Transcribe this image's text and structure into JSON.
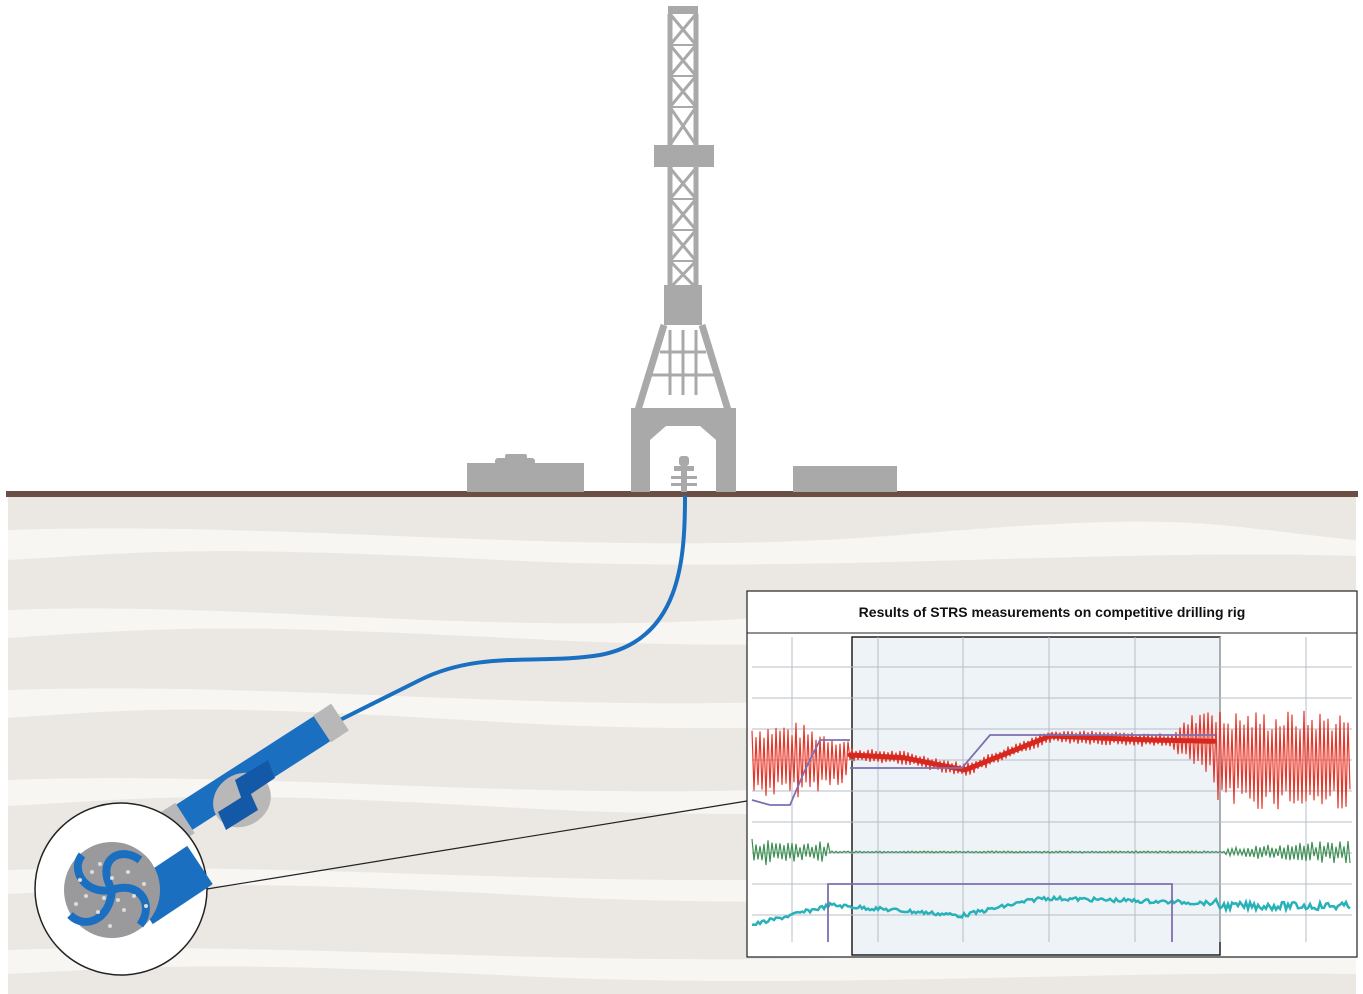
{
  "chart": {
    "title": "Results of STRS measurements on competitive drilling rig"
  },
  "colors": {
    "background": "#ffffff",
    "ground_surface": "#6b4e44",
    "soil_base": "#ebe8e4",
    "soil_band": "#f7f6f3",
    "rig_gray": "#aaa9aa",
    "drill_string": "#1b6fc1",
    "drill_tool_dark": "#1459a8",
    "collar_gray": "#b8b8b8",
    "chart_panel": "#ffffff",
    "chart_highlight": "#eef3f8",
    "grid": "#b7bcc7",
    "signal_red": "#e8372a",
    "signal_green": "#3f8f55",
    "signal_teal": "#27b1b8",
    "signal_purple": "#7e6fb0"
  },
  "icons": {
    "derrick": "drilling-derrick-icon",
    "drill_bit": "pdc-drill-bit-icon"
  }
}
